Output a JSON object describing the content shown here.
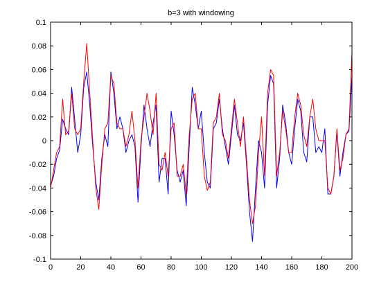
{
  "chart_data": {
    "type": "line",
    "title": "b=3 with windowing",
    "xlabel": "",
    "ylabel": "",
    "xlim": [
      0,
      200
    ],
    "ylim": [
      -0.1,
      0.1
    ],
    "xticks": [
      0,
      20,
      40,
      60,
      80,
      100,
      120,
      140,
      160,
      180,
      200
    ],
    "xtick_labels": [
      "0",
      "20",
      "40",
      "60",
      "80",
      "100",
      "120",
      "140",
      "160",
      "180",
      "200"
    ],
    "yticks": [
      -0.1,
      -0.08,
      -0.06,
      -0.04,
      -0.02,
      0,
      0.02,
      0.04,
      0.06,
      0.08,
      0.1
    ],
    "ytick_labels": [
      "-0.1",
      "-0.08",
      "-0.06",
      "-0.04",
      "-0.02",
      "0",
      "0.02",
      "0.04",
      "0.06",
      "0.08",
      "0.1"
    ],
    "grid": false,
    "legend": "none",
    "series": [
      {
        "color": "#0000ff",
        "x": [
          0,
          2,
          4,
          6,
          8,
          10,
          12,
          14,
          16,
          18,
          20,
          22,
          24,
          26,
          28,
          30,
          32,
          34,
          36,
          38,
          40,
          42,
          44,
          46,
          48,
          50,
          52,
          54,
          56,
          58,
          60,
          62,
          64,
          66,
          68,
          70,
          72,
          74,
          76,
          78,
          80,
          82,
          84,
          86,
          88,
          90,
          92,
          94,
          96,
          98,
          100,
          102,
          104,
          106,
          108,
          110,
          112,
          114,
          116,
          118,
          120,
          122,
          124,
          126,
          128,
          130,
          132,
          134,
          136,
          138,
          140,
          142,
          144,
          146,
          148,
          150,
          152,
          154,
          156,
          158,
          160,
          162,
          164,
          166,
          168,
          170,
          172,
          174,
          176,
          178,
          180,
          182,
          184,
          186,
          188,
          190,
          192,
          194,
          196,
          198,
          200
        ],
        "y": [
          -0.038,
          -0.03,
          -0.015,
          -0.008,
          0.018,
          0.01,
          0.005,
          0.045,
          0.018,
          -0.01,
          0.005,
          0.045,
          0.058,
          0.03,
          -0.005,
          -0.035,
          -0.05,
          -0.015,
          0.005,
          -0.005,
          0.058,
          0.04,
          0.01,
          0.02,
          0.01,
          -0.01,
          0.0,
          0.005,
          -0.005,
          -0.052,
          -0.005,
          0.03,
          0.01,
          -0.005,
          0.015,
          0.03,
          -0.035,
          -0.015,
          -0.015,
          -0.045,
          0.025,
          0.005,
          -0.025,
          -0.035,
          -0.025,
          -0.055,
          -0.005,
          0.045,
          0.03,
          0.01,
          0.025,
          -0.01,
          -0.035,
          -0.04,
          0.01,
          0.015,
          0.035,
          0.01,
          -0.005,
          -0.02,
          0.005,
          0.03,
          0.005,
          0.0,
          0.015,
          -0.02,
          -0.06,
          -0.085,
          -0.04,
          0.0,
          -0.01,
          -0.04,
          0.03,
          0.055,
          0.048,
          -0.04,
          -0.015,
          0.03,
          0.015,
          -0.01,
          -0.02,
          0.01,
          0.035,
          0.025,
          -0.01,
          -0.018,
          0.02,
          0.02,
          -0.01,
          -0.005,
          -0.01,
          0.01,
          -0.045,
          -0.045,
          -0.03,
          0.008,
          -0.03,
          -0.01,
          0.005,
          0.008,
          0.055
        ]
      },
      {
        "color": "#ff0000",
        "x": [
          0,
          2,
          4,
          6,
          8,
          10,
          12,
          14,
          16,
          18,
          20,
          22,
          24,
          26,
          28,
          30,
          32,
          34,
          36,
          38,
          40,
          42,
          44,
          46,
          48,
          50,
          52,
          54,
          56,
          58,
          60,
          62,
          64,
          66,
          68,
          70,
          72,
          74,
          76,
          78,
          80,
          82,
          84,
          86,
          88,
          90,
          92,
          94,
          96,
          98,
          100,
          102,
          104,
          106,
          108,
          110,
          112,
          114,
          116,
          118,
          120,
          122,
          124,
          126,
          128,
          130,
          132,
          134,
          136,
          138,
          140,
          142,
          144,
          146,
          148,
          150,
          152,
          154,
          156,
          158,
          160,
          162,
          164,
          166,
          168,
          170,
          172,
          174,
          176,
          178,
          180,
          182,
          184,
          186,
          188,
          190,
          192,
          194,
          196,
          198,
          200
        ],
        "y": [
          -0.04,
          -0.025,
          -0.01,
          -0.005,
          0.035,
          0.005,
          0.008,
          0.04,
          0.01,
          0.005,
          0.01,
          0.05,
          0.082,
          0.04,
          0.0,
          -0.04,
          -0.058,
          -0.02,
          0.01,
          0.015,
          0.055,
          0.048,
          0.015,
          0.01,
          0.01,
          -0.005,
          0.005,
          0.025,
          0.0,
          -0.04,
          0.0,
          0.02,
          0.04,
          0.025,
          0.005,
          0.04,
          -0.02,
          -0.025,
          -0.01,
          -0.03,
          0.01,
          0.015,
          -0.03,
          -0.03,
          -0.02,
          -0.045,
          0.005,
          0.035,
          0.04,
          0.01,
          0.01,
          -0.03,
          -0.042,
          -0.035,
          0.015,
          0.02,
          0.04,
          0.005,
          0.0,
          -0.015,
          0.01,
          0.035,
          0.015,
          -0.005,
          0.02,
          -0.015,
          -0.05,
          -0.07,
          -0.055,
          -0.01,
          0.02,
          -0.03,
          0.04,
          0.06,
          0.055,
          -0.03,
          -0.01,
          0.025,
          0.01,
          -0.01,
          -0.01,
          0.02,
          0.04,
          0.03,
          0.005,
          -0.005,
          0.02,
          0.035,
          0.01,
          0.0,
          0.0,
          0.0,
          -0.04,
          -0.045,
          -0.03,
          0.01,
          -0.025,
          -0.015,
          0.005,
          0.01,
          0.075
        ]
      }
    ]
  }
}
